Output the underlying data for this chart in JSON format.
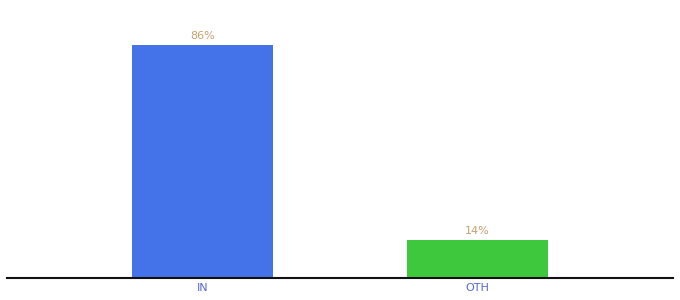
{
  "categories": [
    "IN",
    "OTH"
  ],
  "values": [
    86,
    14
  ],
  "bar_colors": [
    "#4472e8",
    "#3dc83d"
  ],
  "label_color": "#c8a06e",
  "label_texts": [
    "86%",
    "14%"
  ],
  "background_color": "#ffffff",
  "ylim": [
    0,
    100
  ],
  "bar_width": 0.18,
  "x_positions": [
    0.3,
    0.65
  ],
  "xlim": [
    0.05,
    0.9
  ],
  "xlabel_fontsize": 8,
  "label_fontsize": 8,
  "spine_color": "#111111",
  "tick_color": "#5566cc"
}
